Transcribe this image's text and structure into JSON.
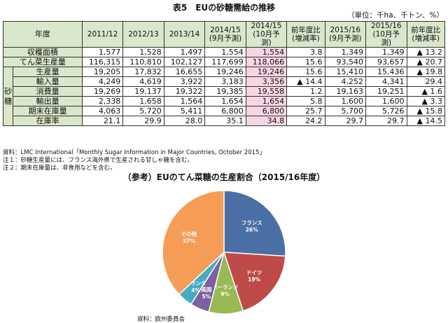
{
  "title": "表5　EUの砂糖需給の推移",
  "unit_note": "（単位：千ha、千トン、%）",
  "table": {
    "header_label": "年度",
    "side_label": "砂糖",
    "columns": [
      "2011/12",
      "2012/13",
      "2013/14",
      "2014/15\n(9月予測)",
      "2014/15\n(10月予測)",
      "前年度比\n(増減率)",
      "2015/16\n(9月予測)",
      "2015/16\n(10月予測)",
      "前年度比\n(増減率)"
    ],
    "rows": [
      {
        "label": "収穫面積",
        "grouped": false,
        "values": [
          "1,577",
          "1,528",
          "1,497",
          "1,554",
          "1,554",
          "3.8",
          "1,349",
          "1,349",
          "▲ 13.2"
        ]
      },
      {
        "label": "てん菜生産量",
        "grouped": false,
        "values": [
          "116,315",
          "110,810",
          "102,127",
          "117,699",
          "118,066",
          "15.6",
          "93,540",
          "93,657",
          "▲ 20.7"
        ]
      },
      {
        "label": "生産量",
        "grouped": true,
        "values": [
          "19,205",
          "17,832",
          "16,655",
          "19,246",
          "19,246",
          "15.6",
          "15,410",
          "15,436",
          "▲ 19.8"
        ]
      },
      {
        "label": "輸入量",
        "grouped": true,
        "values": [
          "4,249",
          "4,619",
          "3,922",
          "3,183",
          "3,356",
          "▲ 14.4",
          "4,252",
          "4,341",
          "29.4"
        ]
      },
      {
        "label": "消費量",
        "grouped": true,
        "values": [
          "19,269",
          "19,137",
          "19,322",
          "19,385",
          "19,558",
          "1.2",
          "19,163",
          "19,251",
          "▲ 1.6"
        ]
      },
      {
        "label": "輸出量",
        "grouped": true,
        "values": [
          "2,338",
          "1,658",
          "1,564",
          "1,654",
          "1,654",
          "5.8",
          "1,600",
          "1,600",
          "▲ 3.3"
        ]
      },
      {
        "label": "期末在庫量",
        "grouped": true,
        "values": [
          "4,063",
          "5,720",
          "5,411",
          "6,800",
          "6,800",
          "25.7",
          "5,700",
          "5,726",
          "▲ 15.8"
        ]
      },
      {
        "label": "在庫率",
        "grouped": true,
        "values": [
          "21.1",
          "29.9",
          "28.0",
          "35.1",
          "34.8",
          "24.2",
          "29.7",
          "29.7",
          "▲ 14.5"
        ]
      }
    ]
  },
  "notes": {
    "source": "資料：LMC International「Monthly Sugar Information in Major Countries, October 2015」",
    "note1": "注１：砂糖生産量には、フランス海外県で生産される甘しゃ糖を含む。",
    "note2": "注２：期末在庫量は、非食用などを含む。"
  },
  "chart_data": {
    "type": "pie",
    "title": "（参考）EUのてん菜糖の生産割合（2015/16年度）",
    "slices": [
      {
        "label": "フランス",
        "pct_label": "26%",
        "value": 26,
        "color": "#4a6fa5"
      },
      {
        "label": "ドイツ",
        "pct_label": "19%",
        "value": 19,
        "color": "#be4b48"
      },
      {
        "label": "ポーランド",
        "pct_label": "9%",
        "value": 9,
        "color": "#98b954"
      },
      {
        "label": "英国",
        "pct_label": "5%",
        "value": 5,
        "color": "#7d60a0"
      },
      {
        "label": "オランダ",
        "pct_label": "4%",
        "value": 4,
        "color": "#46aac5"
      },
      {
        "label": "その他",
        "pct_label": "37%",
        "value": 37,
        "color": "#f59d56"
      }
    ],
    "source": "資料：欧州委員会"
  }
}
